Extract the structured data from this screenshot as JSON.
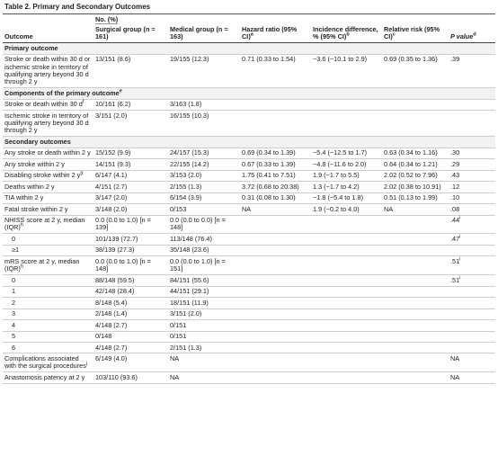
{
  "table": {
    "title": "Table 2. Primary and Secondary Outcomes",
    "group_header": "No. (%)",
    "columns": [
      {
        "text": "Outcome"
      },
      {
        "text": "Surgical group (n = 161)"
      },
      {
        "text": "Medical group (n = 163)"
      },
      {
        "text": "Hazard ratio (95% CI)",
        "note": "a"
      },
      {
        "text": "Incidence difference, % (95% CI)",
        "note": "b"
      },
      {
        "text": "Relative risk (95% CI)",
        "note": "c"
      },
      {
        "text": "P value",
        "note": "d"
      }
    ],
    "rows": [
      {
        "section": "Primary outcome"
      },
      {
        "outcome": "Stroke or death within 30 d or ischemic stroke in territory of qualifying artery beyond 30 d through 2 y",
        "cells": {
          "surgical": "13/151 (8.6)",
          "medical": "19/155 (12.3)",
          "hr": "0.71 (0.33 to 1.54)",
          "diff": "−3.6 (−10.1 to 2.9)",
          "rr": "0.69 (0.35 to 1.36)",
          "p": ".39"
        }
      },
      {
        "section": "Components of the primary outcome",
        "note": "e"
      },
      {
        "outcome": "Stroke or death within 30 d",
        "note": "f",
        "cells": {
          "surgical": "10/161 (6.2)",
          "medical": "3/163 (1.8)"
        }
      },
      {
        "outcome": "Ischemic stroke in territory of qualifying artery beyond 30 d through 2 y",
        "cells": {
          "surgical": "3/151 (2.0)",
          "medical": "16/155 (10.3)"
        }
      },
      {
        "section": "Secondary outcomes"
      },
      {
        "outcome": "Any stroke or death within 2 y",
        "cells": {
          "surgical": "15/152 (9.9)",
          "medical": "24/157 (15.3)",
          "hr": "0.69 (0.34 to 1.39)",
          "diff": "−5.4 (−12.5 to 1.7)",
          "rr": "0.63 (0.34 to 1.16)",
          "p": ".30"
        }
      },
      {
        "outcome": "Any stroke within 2 y",
        "cells": {
          "surgical": "14/151 (9.3)",
          "medical": "22/155 (14.2)",
          "hr": "0.67 (0.33 to 1.39)",
          "diff": "−4.8 (−11.6 to 2.0)",
          "rr": "0.64 (0.34 to 1.21)",
          "p": ".29"
        }
      },
      {
        "outcome": "Disabling stroke within 2 y",
        "note": "g",
        "cells": {
          "surgical": "6/147 (4.1)",
          "medical": "3/153 (2.0)",
          "hr": "1.75 (0.41 to 7.51)",
          "diff": "1.9 (−1.7 to 5.5)",
          "rr": "2.02 (0.52 to 7.96)",
          "p": ".43"
        }
      },
      {
        "outcome": "Deaths within 2 y",
        "cells": {
          "surgical": "4/151 (2.7)",
          "medical": "2/155 (1.3)",
          "hr": "3.72 (0.68 to 20.38)",
          "diff": "1.3 (−1.7 to 4.2)",
          "rr": "2.02 (0.38 to 10.91)",
          "p": ".12"
        }
      },
      {
        "outcome": "TIA within 2 y",
        "cells": {
          "surgical": "3/147 (2.0)",
          "medical": "6/154 (3.9)",
          "hr": "0.31 (0.08 to 1.30)",
          "diff": "−1.8 (−5.4 to 1.8)",
          "rr": "0.51 (0.13 to 1.99)",
          "p": ".10"
        }
      },
      {
        "outcome": "Fatal stroke within 2 y",
        "cells": {
          "surgical": "3/148 (2.0)",
          "medical": "0/153",
          "hr": "NA",
          "diff": "1.9 (−0.2 to 4.0)",
          "rr": "NA",
          "p": ".08"
        }
      },
      {
        "outcome": "NHISS score at 2 y, median (IQR)",
        "note": "h",
        "cells": {
          "surgical": "0.0 (0.0 to 1.0) [n = 139]",
          "medical": "0.0 (0.0 to 0.0) [n = 148]",
          "p": ".44"
        },
        "p_note": "i"
      },
      {
        "outcome": "0",
        "sub": true,
        "cells": {
          "surgical": "101/139 (72.7)",
          "medical": "113/148 (76.4)",
          "p": ".47"
        },
        "p_note": "i"
      },
      {
        "outcome": "≥1",
        "sub": true,
        "cells": {
          "surgical": "38/139 (27.3)",
          "medical": "35/148 (23.6)"
        }
      },
      {
        "outcome": "mRS score at 2 y, median (IQR)",
        "note": "h",
        "cells": {
          "surgical": "0.0 (0.0 to 1.0) [n = 148]",
          "medical": "0.0 (0.0 to 1.0) [n = 151]",
          "p": ".51"
        },
        "p_note": "i"
      },
      {
        "outcome": "0",
        "sub": true,
        "cells": {
          "surgical": "88/148 (59.5)",
          "medical": "84/151 (55.6)",
          "p": ".51"
        },
        "p_note": "i"
      },
      {
        "outcome": "1",
        "sub": true,
        "cells": {
          "surgical": "42/148 (28.4)",
          "medical": "44/151 (29.1)"
        }
      },
      {
        "outcome": "2",
        "sub": true,
        "cells": {
          "surgical": "8/148 (5.4)",
          "medical": "18/151 (11.9)"
        }
      },
      {
        "outcome": "3",
        "sub": true,
        "cells": {
          "surgical": "2/148 (1.4)",
          "medical": "3/151 (2.0)"
        }
      },
      {
        "outcome": "4",
        "sub": true,
        "cells": {
          "surgical": "4/148 (2.7)",
          "medical": "0/151"
        }
      },
      {
        "outcome": "5",
        "sub": true,
        "cells": {
          "surgical": "0/148",
          "medical": "0/151"
        }
      },
      {
        "outcome": "6",
        "sub": true,
        "cells": {
          "surgical": "4/148 (2.7)",
          "medical": "2/151 (1.3)"
        }
      },
      {
        "outcome": "Complications associated with the surgical procedures",
        "note": "j",
        "cells": {
          "surgical": "6/149 (4.0)",
          "medical": "NA",
          "p": "NA"
        }
      },
      {
        "outcome": "Anastomosis patency at 2 y",
        "cells": {
          "surgical": "103/110 (93.6)",
          "medical": "NA",
          "p": "NA"
        }
      }
    ]
  }
}
